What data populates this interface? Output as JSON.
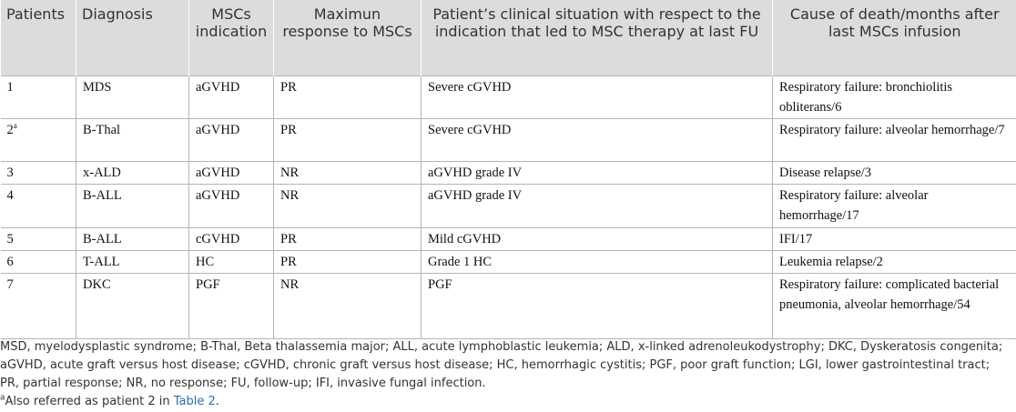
{
  "table": {
    "header": [
      "Patients",
      "Diagnosis",
      "MSCs indication",
      "Maximun response to MSCs",
      "Patient’s clinical situation with respect to the indication that led to MSC therapy at last FU",
      "Cause of death/months after last MSCs infusion"
    ],
    "rows": [
      [
        "1",
        "MDS",
        "aGVHD",
        "PR",
        "Severe cGVHD",
        "Respiratory failure: bronchiolitis obliterans/6"
      ],
      [
        "2",
        "B-Thal",
        "aGVHD",
        "PR",
        "Severe cGVHD",
        "Respiratory failure: alveolar hemorrhage/7"
      ],
      [
        "3",
        "x-ALD",
        "aGVHD",
        "NR",
        "aGVHD grade IV",
        "Disease relapse/3"
      ],
      [
        "4",
        "B-ALL",
        "aGVHD",
        "NR",
        "aGVHD grade IV",
        "Respiratory failure: alveolar hemorrhage/17"
      ],
      [
        "5",
        "B-ALL",
        "cGVHD",
        "PR",
        "Mild cGVHD",
        "IFI/17"
      ],
      [
        "6",
        "T-ALL",
        "HC",
        "PR",
        "Grade 1 HC",
        "Leukemia relapse/2"
      ],
      [
        "7",
        "DKC",
        "PGF",
        "NR",
        "PGF",
        "Respiratory failure: complicated bacterial pneumonia, alveolar hemorrhage/54"
      ]
    ]
  },
  "footnote": {
    "abbreviations": "MSD, myelodysplastic syndrome; B-Thal, Beta thalassemia major; ALL, acute lymphoblastic leukemia; ALD, x-linked adrenoleukodystrophy; DKC, Dyskeratosis congenita; aGVHD, acute graft versus host disease; cGVHD, chronic graft versus host disease; HC, hemorrhagic cystitis; PGF, poor graft function; LGI, lower gastrointestinal tract; PR, partial response; NR, no response; FU, follow-up; IFI, invasive fungal infection.",
    "marker": "a",
    "text": "Also referred as patient 2 in ",
    "link": "Table 2",
    "end": "."
  }
}
